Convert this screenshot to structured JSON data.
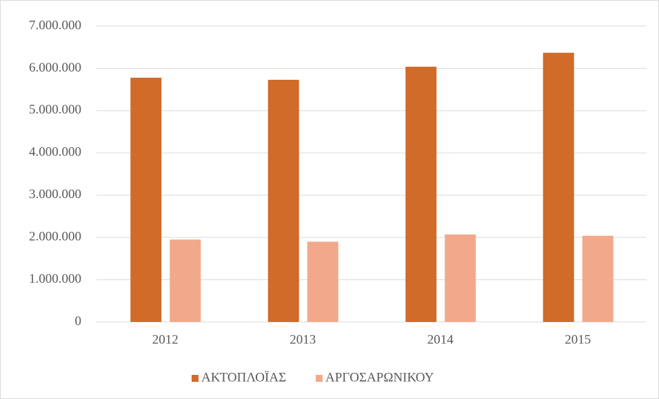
{
  "chart_data": {
    "type": "bar",
    "categories": [
      "2012",
      "2013",
      "2014",
      "2015"
    ],
    "series": [
      {
        "name": "ΑΚΤΟΠΛΟΪΑΣ",
        "color": "#d06b2a",
        "values": [
          5780000,
          5730000,
          6040000,
          6370000
        ]
      },
      {
        "name": "ΑΡΓΟΣΑΡΩΝΙΚΟΥ",
        "color": "#f2a98b",
        "values": [
          1950000,
          1900000,
          2070000,
          2040000
        ]
      }
    ],
    "ylim": [
      0,
      7000000
    ],
    "yticks": [
      0,
      {
        "value": 1000000,
        "label": "1.000.000"
      },
      {
        "value": 2000000,
        "label": "2.000.000"
      },
      {
        "value": 3000000,
        "label": "3.000.000"
      },
      {
        "value": 4000000,
        "label": "4.000.000"
      },
      {
        "value": 5000000,
        "label": "5.000.000"
      },
      {
        "value": 6000000,
        "label": "6.000.000"
      },
      {
        "value": 7000000,
        "label": "7.000.000"
      }
    ],
    "grid": true,
    "legend": "bottom"
  }
}
